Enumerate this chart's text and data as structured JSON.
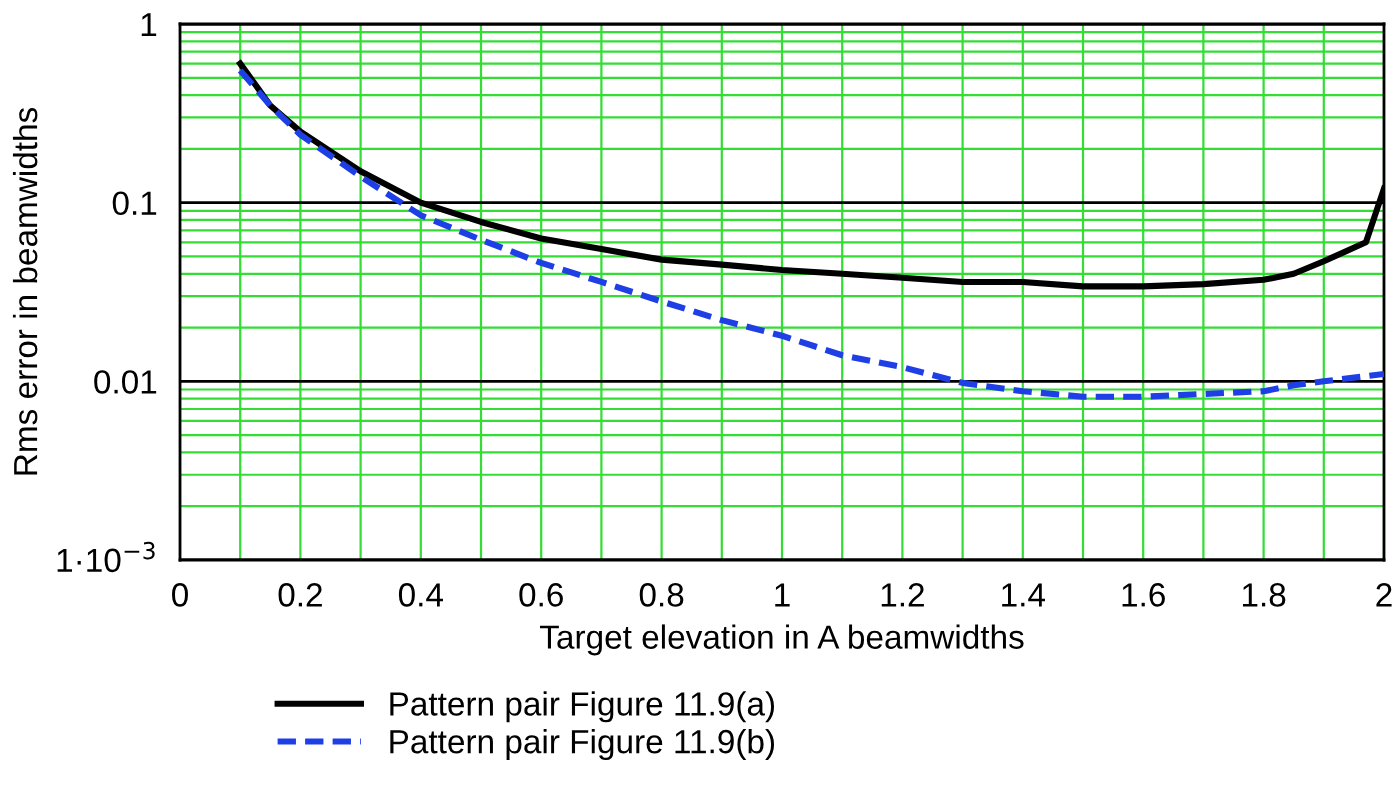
{
  "chart_data": {
    "type": "line",
    "xlabel": "Target elevation in A beamwidths",
    "ylabel": "Rms error in beamwidths",
    "log": "y",
    "grid": true,
    "legend": "bottom left",
    "marker": "none",
    "xlim": [
      0,
      2
    ],
    "xticks": [
      0,
      0.2,
      0.4,
      0.6,
      0.8,
      1,
      1.2,
      1.4,
      1.6,
      1.8,
      2
    ],
    "ylim": [
      0.001,
      1
    ],
    "yticks": [
      {
        "value": 0.001,
        "label": "1·10$^{−3}$"
      },
      {
        "value": 0.01,
        "label": "0.01"
      },
      {
        "value": 0.1,
        "label": "0.1"
      },
      {
        "value": 1,
        "label": "1"
      }
    ],
    "series": [
      {
        "name": "Pattern pair Figure 11.9(a)",
        "color": "#000000",
        "line_style": "solid",
        "x": [
          0.1,
          0.15,
          0.2,
          0.3,
          0.4,
          0.5,
          0.6,
          0.7,
          0.8,
          0.9,
          1.0,
          1.1,
          1.2,
          1.3,
          1.4,
          1.5,
          1.6,
          1.7,
          1.8,
          1.85,
          1.9,
          1.97,
          2.0
        ],
        "values": [
          0.6,
          0.35,
          0.25,
          0.15,
          0.1,
          0.078,
          0.063,
          0.055,
          0.048,
          0.045,
          0.042,
          0.04,
          0.038,
          0.036,
          0.036,
          0.034,
          0.034,
          0.035,
          0.037,
          0.04,
          0.047,
          0.06,
          0.12
        ]
      },
      {
        "name": "Pattern pair Figure 11.9(b)",
        "color": "#1f3fe6",
        "line_style": "dashed",
        "x": [
          0.1,
          0.15,
          0.2,
          0.3,
          0.4,
          0.5,
          0.6,
          0.7,
          0.8,
          0.9,
          1.0,
          1.1,
          1.2,
          1.3,
          1.4,
          1.5,
          1.6,
          1.7,
          1.8,
          1.85,
          1.9,
          2.0
        ],
        "values": [
          0.55,
          0.35,
          0.24,
          0.14,
          0.085,
          0.062,
          0.046,
          0.036,
          0.028,
          0.022,
          0.018,
          0.014,
          0.012,
          0.0098,
          0.0088,
          0.0082,
          0.0082,
          0.0085,
          0.0088,
          0.0095,
          0.01,
          0.011
        ]
      }
    ]
  }
}
